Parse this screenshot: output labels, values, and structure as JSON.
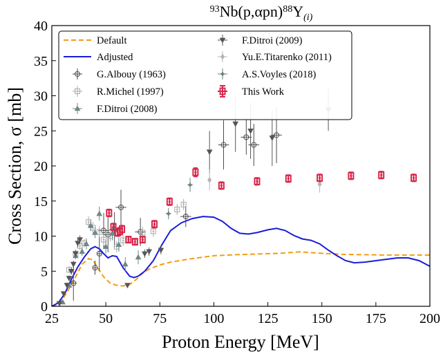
{
  "chart_data": {
    "type": "scatter",
    "title": {
      "base": "Nb(p,αpn)",
      "base_sup": "93",
      "product": "Y",
      "product_sup": "88",
      "product_sub": "(i)"
    },
    "xlabel": "Proton Energy [MeV]",
    "ylabel": "Cross Section, σ [mb]",
    "xlim": [
      25,
      200
    ],
    "ylim": [
      0,
      40
    ],
    "xticks": [
      25,
      50,
      75,
      100,
      125,
      150,
      175,
      200
    ],
    "yticks": [
      0,
      5,
      10,
      15,
      20,
      25,
      30,
      35,
      40
    ],
    "grid": false,
    "legend_position": "top-left",
    "series": [
      {
        "name": "Default",
        "kind": "line",
        "color": "#f39c12",
        "dash": true,
        "x": [
          25,
          28,
          30,
          33,
          36,
          39,
          42,
          44,
          46,
          49,
          52,
          55,
          58,
          61,
          64,
          67,
          70,
          75,
          80,
          90,
          100,
          110,
          120,
          130,
          140,
          150,
          160,
          170,
          180,
          190,
          200
        ],
        "y": [
          0,
          0.3,
          1,
          2.5,
          4.2,
          6,
          6.8,
          6.6,
          5.6,
          4.2,
          3.3,
          3.0,
          2.9,
          3.1,
          3.8,
          4.7,
          5.3,
          5.9,
          6.3,
          6.8,
          7.2,
          7.35,
          7.45,
          7.55,
          7.75,
          7.55,
          7.4,
          7.35,
          7.3,
          7.3,
          7.3
        ]
      },
      {
        "name": "Adjusted",
        "kind": "line",
        "color": "#1a1adb",
        "dash": false,
        "x": [
          25,
          28,
          31,
          34,
          37,
          40,
          43,
          45,
          47,
          49,
          51,
          53,
          55,
          58,
          61,
          63,
          65,
          68,
          72,
          76,
          80,
          85,
          90,
          95,
          100,
          104,
          108,
          112,
          116,
          120,
          125,
          129,
          133,
          137,
          141,
          145,
          149,
          153,
          157,
          161,
          165,
          170,
          175,
          180,
          185,
          190,
          195,
          200
        ],
        "y": [
          0,
          0.5,
          1.8,
          3.8,
          5.6,
          7,
          8.2,
          8.5,
          8.2,
          7.5,
          6.9,
          7.2,
          7.1,
          5.5,
          4.3,
          4.1,
          4.3,
          5.0,
          6.5,
          8.8,
          10.8,
          11.9,
          12.5,
          12.8,
          12.7,
          12.1,
          11.1,
          10.4,
          10.3,
          10.5,
          10.9,
          11.1,
          10.8,
          10.1,
          9.6,
          9.4,
          8.9,
          8.0,
          7.2,
          6.5,
          6.2,
          6.3,
          6.5,
          6.7,
          6.9,
          6.9,
          6.5,
          5.7
        ]
      },
      {
        "name": "G.Albouy (1963)",
        "kind": "points",
        "marker": "circle",
        "color": "#4a4a4a",
        "points": [
          [
            35,
            3.3,
            1.5,
            2.5
          ],
          [
            45,
            5.5,
            1.2,
            1.0
          ],
          [
            47,
            7.5,
            1.2,
            2.5
          ],
          [
            49,
            10.8,
            2.5,
            2.5
          ],
          [
            51,
            10.2,
            2.5,
            2.5
          ],
          [
            54,
            10.9,
            2.5,
            2.5
          ],
          [
            57,
            14.1,
            2.5,
            2.5
          ],
          [
            66,
            10.6,
            2.5,
            2.0
          ],
          [
            87,
            12.8,
            2.5,
            1.5
          ],
          [
            104.5,
            23.0,
            2.5,
            3.5
          ],
          [
            115,
            24.1,
            2.5,
            2.5
          ],
          [
            118.5,
            23.0,
            2.5,
            3.0
          ],
          [
            129,
            24.4,
            2.5,
            4.0
          ]
        ]
      },
      {
        "name": "R.Michel (1997)",
        "kind": "points",
        "marker": "square",
        "color": "#a8a8a8",
        "points": [
          [
            33,
            5.2,
            0.5,
            0.5
          ],
          [
            36,
            7.5,
            0.5,
            0.6
          ],
          [
            38,
            8.6,
            0.5,
            0.6
          ],
          [
            40,
            9.0,
            0.5,
            0.6
          ],
          [
            42,
            12.0,
            0.5,
            0.8
          ],
          [
            44,
            11.2,
            0.5,
            0.8
          ],
          [
            47,
            10.6,
            0.5,
            0.8
          ],
          [
            49,
            9.5,
            0.5,
            0.8
          ],
          [
            52,
            10.0,
            0.5,
            0.8
          ],
          [
            55,
            8.5,
            0.5,
            0.8
          ],
          [
            58,
            9.4,
            0.5,
            0.8
          ],
          [
            67,
            10.5,
            0.5,
            0.8
          ],
          [
            72,
            10.7,
            0.5,
            0.8
          ],
          [
            83,
            13.8,
            0.5,
            0.8
          ],
          [
            86,
            14.5,
            0.5,
            0.8
          ]
        ]
      },
      {
        "name": "F.Ditroi (2008)",
        "kind": "points",
        "marker": "triangle-up",
        "color": "#6f8787",
        "points": [
          [
            30,
            0.6,
            0.5,
            0.3
          ],
          [
            33,
            3.0,
            0.5,
            0.4
          ],
          [
            36,
            7.2,
            0.5,
            0.5
          ],
          [
            39,
            7.8,
            0.5,
            0.6
          ],
          [
            41,
            8.9,
            0.5,
            0.8
          ],
          [
            43,
            11.5,
            0.5,
            0.8
          ],
          [
            45,
            10.5,
            0.5,
            0.8
          ],
          [
            47,
            13.2,
            0.5,
            1.0
          ],
          [
            50,
            8.5,
            0.5,
            1.0
          ],
          [
            53,
            10.4,
            0.5,
            1.0
          ],
          [
            56,
            8.8,
            0.5,
            1.0
          ],
          [
            59,
            6.0,
            0.5,
            1.0
          ],
          [
            65,
            7.0,
            0.5,
            1.0
          ]
        ]
      },
      {
        "name": "F.Ditroi (2009)",
        "kind": "points",
        "marker": "triangle-down",
        "color": "#555555",
        "points": [
          [
            28.5,
            0.4,
            0.3,
            0.3
          ],
          [
            30.5,
            1.8,
            0.3,
            0.3
          ],
          [
            32,
            3.0,
            0.3,
            0.4
          ],
          [
            33,
            4.0,
            0.3,
            0.4
          ],
          [
            34,
            5.0,
            0.3,
            0.5
          ],
          [
            35,
            6.0,
            0.3,
            0.5
          ],
          [
            36,
            7.5,
            0.3,
            0.5
          ],
          [
            37,
            9.0,
            0.3,
            0.6
          ],
          [
            38,
            9.5,
            0.3,
            0.6
          ],
          [
            60,
            3.0,
            0.5,
            0.3
          ],
          [
            68,
            7.5,
            0.5,
            0.6
          ],
          [
            70,
            7.8,
            0.5,
            0.6
          ],
          [
            75.5,
            8.0,
            0.5,
            0.6
          ],
          [
            98,
            22.0,
            0.5,
            3.0
          ],
          [
            110,
            26.0,
            0.5,
            4.0
          ],
          [
            117,
            25.0,
            0.5,
            4.0
          ],
          [
            127,
            24.0,
            0.5,
            4.0
          ],
          [
            153,
            28.0,
            0.5,
            3.0
          ]
        ]
      },
      {
        "name": "Yu.E.Titarenko (2011)",
        "kind": "points",
        "marker": "diamond",
        "color": "#b4b4b4",
        "points": [
          [
            98,
            18.0,
            0.3,
            1.5
          ],
          [
            149,
            17.4,
            0.3,
            1.2
          ]
        ]
      },
      {
        "name": "A.S.Voyles (2018)",
        "kind": "points",
        "marker": "star",
        "color": "#6c8080",
        "points": [
          [
            79,
            13.2,
            0.5,
            0.8
          ],
          [
            89,
            17.3,
            0.5,
            1.0
          ]
        ]
      },
      {
        "name": "This Work",
        "kind": "points",
        "marker": "errbox",
        "color": "#d9254a",
        "points": [
          [
            51.5,
            13.3,
            0.5,
            0.5
          ],
          [
            53.5,
            11.3,
            0.5,
            0.5
          ],
          [
            55.5,
            10.5,
            0.5,
            0.5
          ],
          [
            56.5,
            10.7,
            0.5,
            0.5
          ],
          [
            57.5,
            11.0,
            0.5,
            0.5
          ],
          [
            60.5,
            9.5,
            0.5,
            0.4
          ],
          [
            63.5,
            9.2,
            0.5,
            0.4
          ],
          [
            67,
            9.5,
            0.5,
            0.4
          ],
          [
            72.5,
            11.7,
            0.5,
            0.5
          ],
          [
            79.5,
            14.9,
            0.5,
            0.5
          ],
          [
            91.5,
            19.1,
            0.5,
            0.6
          ],
          [
            103.5,
            17.2,
            0.5,
            0.5
          ],
          [
            120,
            17.8,
            0.5,
            0.5
          ],
          [
            134.5,
            18.2,
            0.5,
            0.5
          ],
          [
            149,
            18.3,
            0.5,
            0.5
          ],
          [
            163.5,
            18.6,
            0.5,
            0.5
          ],
          [
            177.5,
            18.7,
            0.5,
            0.5
          ],
          [
            192.5,
            18.3,
            0.5,
            0.5
          ]
        ]
      }
    ]
  }
}
